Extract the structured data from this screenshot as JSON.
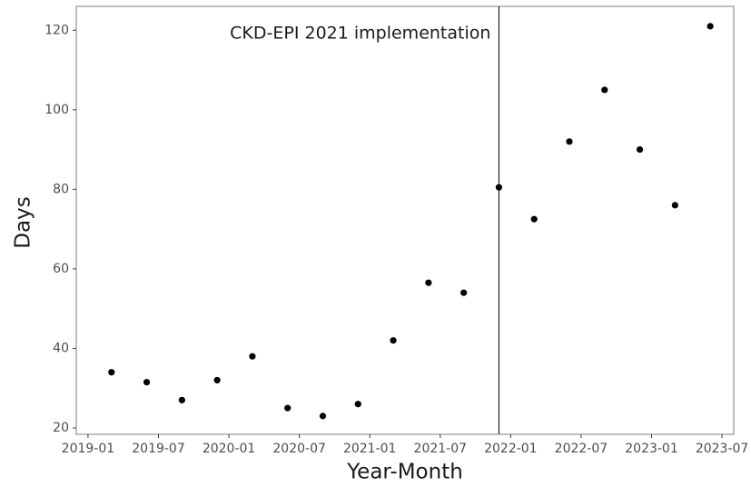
{
  "chart_data": {
    "type": "scatter",
    "xlabel": "Year-Month",
    "ylabel": "Days",
    "x": [
      "2019-03",
      "2019-06",
      "2019-09",
      "2019-12",
      "2020-03",
      "2020-06",
      "2020-09",
      "2020-12",
      "2021-03",
      "2021-06",
      "2021-09",
      "2021-12",
      "2022-03",
      "2022-06",
      "2022-09",
      "2022-12",
      "2023-03",
      "2023-06"
    ],
    "values": [
      34,
      31.5,
      27,
      32,
      38,
      25,
      23,
      26,
      42,
      56.5,
      54,
      80.5,
      72.5,
      92,
      105,
      90,
      76,
      121
    ],
    "color": "#000000",
    "xlim": [
      "2018-12",
      "2023-08"
    ],
    "xticks": [
      "2019-01",
      "2019-07",
      "2020-01",
      "2020-07",
      "2021-01",
      "2021-07",
      "2022-01",
      "2022-07",
      "2023-01",
      "2023-07"
    ],
    "ylim": [
      18.4,
      126
    ],
    "yticks": [
      20,
      40,
      60,
      80,
      100,
      120
    ],
    "annotations": [
      {
        "x": "2021-12",
        "text": "CKD-EPI 2021 implementation"
      }
    ]
  }
}
